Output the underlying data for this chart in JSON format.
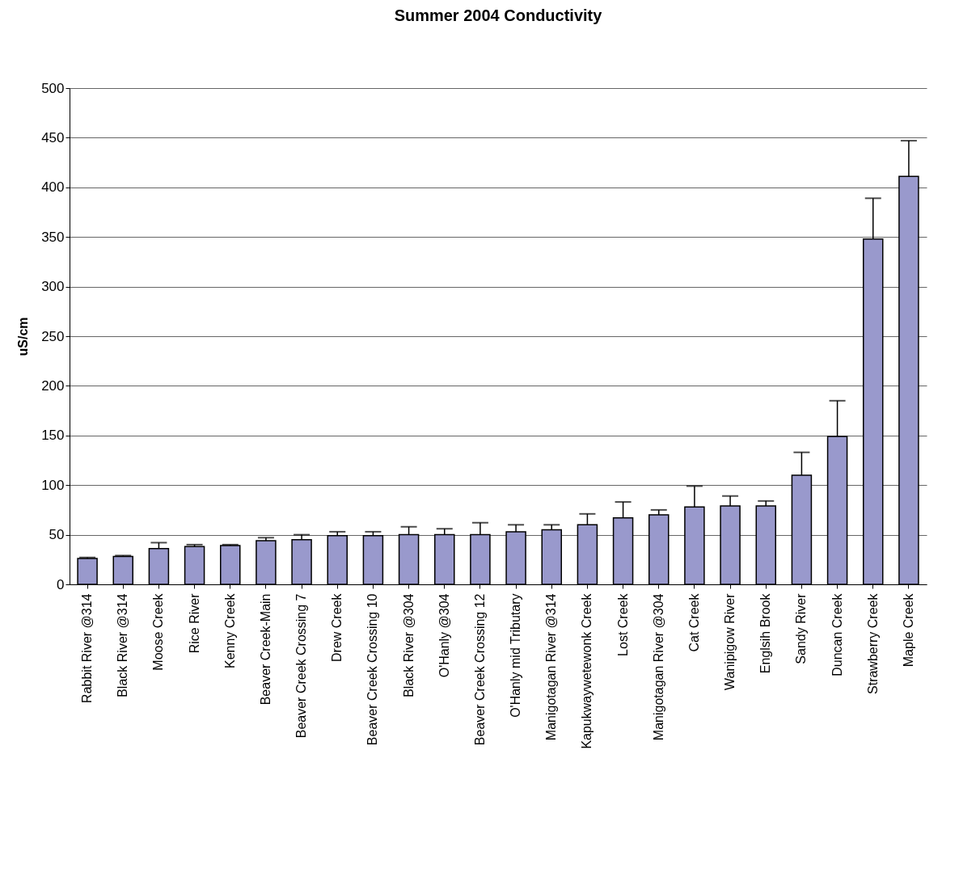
{
  "chart_data": {
    "type": "bar",
    "title": "Summer 2004 Conductivity",
    "ylabel": "uS/cm",
    "categories": [
      "Rabbit River @314",
      "Black River @314",
      "Moose Creek",
      "Rice River",
      "Kenny Creek",
      "Beaver Creek-Main",
      "Beaver Creek Crossing 7",
      "Drew Creek",
      "Beaver Creek Crossing 10",
      "Black River @304",
      "O'Hanly @304",
      "Beaver Creek Crossing 12",
      "O'Hanly mid Tributary",
      "Manigotagan River @314",
      "Kapukwaywetewonk Creek",
      "Lost Creek",
      "Manigotagan River @304",
      "Cat Creek",
      "Wanipigow River",
      "Englsih Brook",
      "Sandy River",
      "Duncan Creek",
      "Strawberry Creek",
      "Maple Creek"
    ],
    "series": [
      {
        "color": "#9999cc",
        "values": [
          26,
          28,
          36,
          38,
          39,
          44,
          45,
          49,
          49,
          50,
          50,
          50,
          53,
          55,
          60,
          67,
          70,
          78,
          79,
          79,
          110,
          149,
          348,
          411
        ],
        "errors": [
          [
            26,
            27
          ],
          [
            28,
            29
          ],
          [
            36,
            42
          ],
          [
            38,
            40
          ],
          [
            39,
            40
          ],
          [
            44,
            47
          ],
          [
            45,
            50
          ],
          [
            49,
            53
          ],
          [
            49,
            53
          ],
          [
            50,
            58
          ],
          [
            50,
            56
          ],
          [
            50,
            62
          ],
          [
            53,
            60
          ],
          [
            55,
            60
          ],
          [
            60,
            71
          ],
          [
            67,
            83
          ],
          [
            70,
            75
          ],
          [
            78,
            99
          ],
          [
            79,
            89
          ],
          [
            79,
            84
          ],
          [
            110,
            133
          ],
          [
            149,
            185
          ],
          [
            348,
            389
          ],
          [
            411,
            447
          ]
        ]
      }
    ],
    "ylim": [
      0,
      500
    ],
    "yticks": [
      0,
      50,
      100,
      150,
      200,
      250,
      300,
      350,
      400,
      450,
      500
    ],
    "grid": "y"
  }
}
